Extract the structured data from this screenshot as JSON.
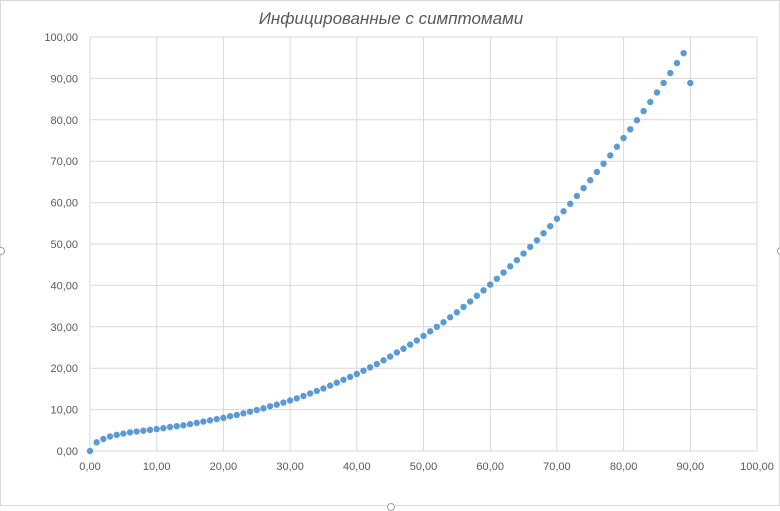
{
  "chart_data": {
    "type": "scatter",
    "title": "Инфицированные с симптомами",
    "xlabel": "",
    "ylabel": "",
    "xlim": [
      0,
      100
    ],
    "ylim": [
      0,
      100
    ],
    "x_ticks": [
      "0,00",
      "10,00",
      "20,00",
      "30,00",
      "40,00",
      "50,00",
      "60,00",
      "70,00",
      "80,00",
      "90,00",
      "100,00"
    ],
    "y_ticks": [
      "0,00",
      "10,00",
      "20,00",
      "30,00",
      "40,00",
      "50,00",
      "60,00",
      "70,00",
      "80,00",
      "90,00",
      "100,00"
    ],
    "grid": true,
    "legend": "none",
    "marker_color": "#5b9bd5",
    "series": [
      {
        "x": [
          0,
          1,
          2,
          3,
          4,
          5,
          6,
          7,
          8,
          9,
          10,
          11,
          12,
          13,
          14,
          15,
          16,
          17,
          18,
          19,
          20,
          21,
          22,
          23,
          24,
          25,
          26,
          27,
          28,
          29,
          30,
          31,
          32,
          33,
          34,
          35,
          36,
          37,
          38,
          39,
          40,
          41,
          42,
          43,
          44,
          45,
          46,
          47,
          48,
          49,
          50,
          51,
          52,
          53,
          54,
          55,
          56,
          57,
          58,
          59,
          60,
          61,
          62,
          63,
          64,
          65,
          66,
          67,
          68,
          69,
          70,
          71,
          72,
          73,
          74,
          75,
          76,
          77,
          78,
          79,
          80,
          81,
          82,
          83,
          84,
          85,
          86,
          87,
          88,
          89,
          90
        ],
        "y": [
          0.0,
          2.1,
          2.9,
          3.5,
          3.9,
          4.2,
          4.5,
          4.7,
          4.9,
          5.1,
          5.3,
          5.5,
          5.8,
          6.0,
          6.2,
          6.5,
          6.8,
          7.1,
          7.4,
          7.7,
          8.0,
          8.4,
          8.7,
          9.1,
          9.5,
          9.9,
          10.3,
          10.8,
          11.2,
          11.7,
          12.2,
          12.7,
          13.3,
          13.9,
          14.5,
          15.1,
          15.8,
          16.5,
          17.2,
          17.9,
          18.6,
          19.4,
          20.2,
          21.0,
          21.9,
          22.8,
          23.8,
          24.7,
          25.7,
          26.7,
          27.8,
          28.9,
          30.0,
          31.1,
          32.3,
          33.5,
          34.8,
          36.1,
          37.5,
          38.8,
          40.2,
          41.6,
          43.1,
          44.6,
          46.1,
          47.7,
          49.3,
          50.9,
          52.6,
          54.3,
          56.1,
          57.9,
          59.7,
          61.6,
          63.5,
          65.4,
          67.4,
          69.4,
          71.4,
          73.5,
          75.6,
          77.7,
          79.9,
          82.1,
          84.3,
          86.6,
          88.9,
          91.3,
          93.7,
          96.1,
          88.9
        ]
      }
    ]
  }
}
